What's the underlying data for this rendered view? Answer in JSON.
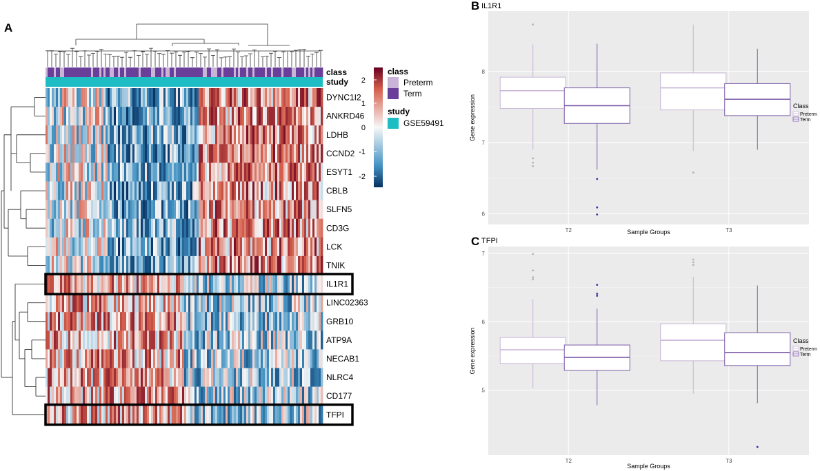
{
  "panels": {
    "a": "A",
    "b": "B",
    "c": "C"
  },
  "heatmap": {
    "genes": [
      "DYNC1I2",
      "ANKRD46",
      "LDHB",
      "CCND2",
      "ESYT1",
      "CBLB",
      "SLFN5",
      "CD3G",
      "LCK",
      "TNIK",
      "IL1R1",
      "LINC02363",
      "GRB10",
      "ATP9A",
      "NECAB1",
      "NLRC4",
      "CD177",
      "TFPI"
    ],
    "highlighted": [
      "IL1R1",
      "TFPI"
    ],
    "annotation_rows": {
      "class": "class",
      "study": "study"
    },
    "legend": {
      "class_title": "class",
      "class_items": [
        {
          "label": "Preterm",
          "color": "#c8b4d6"
        },
        {
          "label": "Term",
          "color": "#6a3f9a"
        }
      ],
      "study_title": "study",
      "study_items": [
        {
          "label": "GSE59491",
          "color": "#1ebdc4"
        }
      ],
      "scale_ticks": [
        "2",
        "1",
        "0",
        "-1",
        "-2"
      ]
    },
    "colors": {
      "high": "#67001f",
      "mid": "#f7f7f7",
      "low": "#053061",
      "study": "#1ebdc4"
    }
  },
  "chart_data": [
    {
      "type": "box",
      "title": "IL1R1",
      "xlabel": "Sample Groups",
      "ylabel": "Gene expression",
      "categories": [
        "T2",
        "T3"
      ],
      "yticks": [
        6,
        7,
        8
      ],
      "ylim": [
        5.85,
        8.85
      ],
      "legend_title": "Class",
      "legend_items": [
        "Preterm",
        "Term"
      ],
      "series": [
        {
          "name": "Preterm",
          "color": "#c8b4d6",
          "boxes": [
            {
              "group": "T2",
              "whisker_low": 6.9,
              "q1": 7.48,
              "median": 7.73,
              "q3": 7.92,
              "whisker_high": 8.38,
              "outliers": [
                8.66,
                6.78,
                6.72,
                6.67
              ]
            },
            {
              "group": "T3",
              "whisker_low": 6.88,
              "q1": 7.46,
              "median": 7.77,
              "q3": 7.98,
              "whisker_high": 8.66,
              "outliers": [
                6.58
              ]
            }
          ]
        },
        {
          "name": "Term",
          "color": "#7a5aa8",
          "boxes": [
            {
              "group": "T2",
              "whisker_low": 6.62,
              "q1": 7.27,
              "median": 7.52,
              "q3": 7.77,
              "whisker_high": 8.39,
              "outliers": [
                6.49,
                6.09,
                5.99
              ]
            },
            {
              "group": "T3",
              "whisker_low": 6.9,
              "q1": 7.38,
              "median": 7.61,
              "q3": 7.83,
              "whisker_high": 8.32,
              "outliers": []
            }
          ]
        }
      ]
    },
    {
      "type": "box",
      "title": "TFPI",
      "xlabel": "Sample Groups",
      "ylabel": "Gene expression",
      "categories": [
        "T2",
        "T3"
      ],
      "yticks": [
        5,
        6,
        7
      ],
      "ylim": [
        4.05,
        7.1
      ],
      "legend_title": "Class",
      "legend_items": [
        "Preterm",
        "Term"
      ],
      "series": [
        {
          "name": "Preterm",
          "color": "#c8b4d6",
          "boxes": [
            {
              "group": "T2",
              "whisker_low": 5.03,
              "q1": 5.39,
              "median": 5.59,
              "q3": 5.77,
              "whisker_high": 6.33,
              "outliers": [
                6.99,
                6.75,
                6.65,
                6.62
              ]
            },
            {
              "group": "T3",
              "whisker_low": 4.95,
              "q1": 5.43,
              "median": 5.73,
              "q3": 5.97,
              "whisker_high": 6.66,
              "outliers": [
                6.91,
                6.87,
                6.83
              ]
            }
          ]
        },
        {
          "name": "Term",
          "color": "#7a5aa8",
          "boxes": [
            {
              "group": "T2",
              "whisker_low": 4.78,
              "q1": 5.29,
              "median": 5.48,
              "q3": 5.66,
              "whisker_high": 6.19,
              "outliers": [
                6.54,
                6.41,
                6.38
              ]
            },
            {
              "group": "T3",
              "whisker_low": 4.81,
              "q1": 5.36,
              "median": 5.55,
              "q3": 5.84,
              "whisker_high": 6.53,
              "outliers": [
                4.17
              ]
            }
          ]
        }
      ]
    }
  ]
}
